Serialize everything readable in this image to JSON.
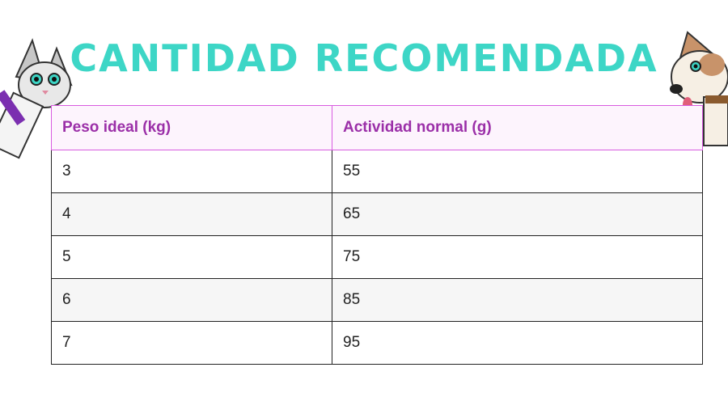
{
  "header": {
    "title": "CANTIDAD RECOMENDADA"
  },
  "table": {
    "columns": [
      "Peso ideal (kg)",
      "Actividad normal (g)"
    ],
    "rows": [
      [
        3,
        55
      ],
      [
        4,
        65
      ],
      [
        5,
        75
      ],
      [
        6,
        85
      ],
      [
        7,
        95
      ]
    ]
  }
}
